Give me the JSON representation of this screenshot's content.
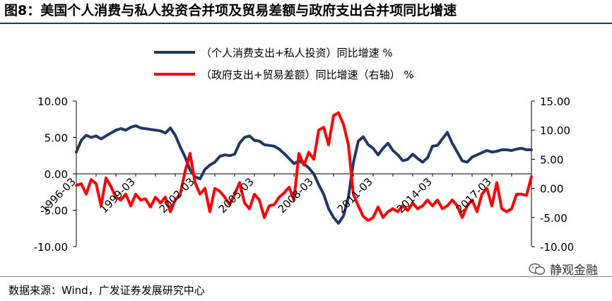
{
  "header": {
    "title": "图8：美国个人消费与私人投资合并项及贸易差额与政府支出合并项同比增速"
  },
  "legend": {
    "series_a": "（个人消费支出+私人投资）同比增速 %",
    "series_b": "（政府支出+贸易差额）同比增速（右轴） %"
  },
  "footer": {
    "source": "数据来源：Wind，广发证券发展研究中心",
    "watermark": "静观金融"
  },
  "colors": {
    "series_a": "#1f3864",
    "series_b": "#ff0000",
    "axis": "#000000"
  },
  "chart_data": {
    "type": "line",
    "x_tick_labels": [
      "1996-03",
      "1999-03",
      "2002-03",
      "2005-03",
      "2008-03",
      "2011-03",
      "2014-03",
      "2017-03"
    ],
    "y_left_ticks": [
      "10.00",
      "5.00",
      "0.00",
      "-5.00",
      "-10.00"
    ],
    "y_left_range": [
      -10,
      10
    ],
    "y_right_ticks": [
      "15.00",
      "10.00",
      "5.00",
      "0.00",
      "-5.00",
      "-10.00"
    ],
    "y_right_range": [
      -10,
      15
    ],
    "grid": false,
    "legend_position": "top",
    "series": [
      {
        "name": "（个人消费支出+私人投资）同比增速 %",
        "axis": "left",
        "x": [
          "1996-03",
          "1996-06",
          "1996-09",
          "1996-12",
          "1997-03",
          "1997-06",
          "1997-09",
          "1997-12",
          "1998-03",
          "1998-06",
          "1998-09",
          "1998-12",
          "1999-03",
          "1999-06",
          "1999-09",
          "1999-12",
          "2000-03",
          "2000-06",
          "2000-09",
          "2000-12",
          "2001-03",
          "2001-06",
          "2001-09",
          "2001-12",
          "2002-03",
          "2002-06",
          "2002-09",
          "2002-12",
          "2003-03",
          "2003-06",
          "2003-09",
          "2003-12",
          "2004-03",
          "2004-06",
          "2004-09",
          "2004-12",
          "2005-03",
          "2005-06",
          "2005-09",
          "2005-12",
          "2006-03",
          "2006-06",
          "2006-09",
          "2006-12",
          "2007-03",
          "2007-06",
          "2007-09",
          "2007-12",
          "2008-03",
          "2008-06",
          "2008-09",
          "2008-12",
          "2009-03",
          "2009-06",
          "2009-09",
          "2009-12",
          "2010-03",
          "2010-06",
          "2010-09",
          "2010-12",
          "2011-03",
          "2011-06",
          "2011-09",
          "2011-12",
          "2012-03",
          "2012-06",
          "2012-09",
          "2012-12",
          "2013-03",
          "2013-06",
          "2013-09",
          "2013-12",
          "2014-03",
          "2014-06",
          "2014-09",
          "2014-12",
          "2015-03",
          "2015-06",
          "2015-09",
          "2015-12",
          "2016-03",
          "2016-06",
          "2016-09",
          "2016-12",
          "2017-03",
          "2017-06",
          "2017-09",
          "2017-12",
          "2018-03",
          "2018-06",
          "2018-09",
          "2018-12",
          "2019-03"
        ],
        "values": [
          3.0,
          4.6,
          5.3,
          5.0,
          5.2,
          4.8,
          5.2,
          5.6,
          6.0,
          6.2,
          6.0,
          6.4,
          6.6,
          6.3,
          6.2,
          6.1,
          6.0,
          5.9,
          5.6,
          6.3,
          5.3,
          3.7,
          2.3,
          0.5,
          -0.4,
          -0.7,
          0.6,
          1.2,
          1.6,
          2.4,
          2.6,
          2.5,
          2.7,
          4.2,
          5.0,
          5.2,
          4.6,
          4.5,
          4.0,
          3.9,
          3.8,
          3.4,
          2.8,
          2.1,
          1.4,
          1.8,
          1.4,
          0.8,
          0.0,
          -1.5,
          -2.8,
          -4.8,
          -6.0,
          -6.8,
          -5.8,
          -3.2,
          1.5,
          4.5,
          5.1,
          4.0,
          3.5,
          2.6,
          3.5,
          4.2,
          3.2,
          2.6,
          1.8,
          2.0,
          2.7,
          2.1,
          1.6,
          2.2,
          3.8,
          3.9,
          4.8,
          5.7,
          4.2,
          3.0,
          1.8,
          1.6,
          2.3,
          2.6,
          2.9,
          3.2,
          3.0,
          3.1,
          3.3,
          3.3,
          3.2,
          3.4,
          3.5,
          3.3,
          3.3
        ]
      },
      {
        "name": "（政府支出+贸易差额）同比增速（右轴） %",
        "axis": "right",
        "x": [
          "1996-03",
          "1996-06",
          "1996-09",
          "1996-12",
          "1997-03",
          "1997-06",
          "1997-09",
          "1997-12",
          "1998-03",
          "1998-06",
          "1998-09",
          "1998-12",
          "1999-03",
          "1999-06",
          "1999-09",
          "1999-12",
          "2000-03",
          "2000-06",
          "2000-09",
          "2000-12",
          "2001-03",
          "2001-06",
          "2001-09",
          "2001-12",
          "2002-03",
          "2002-06",
          "2002-09",
          "2002-12",
          "2003-03",
          "2003-06",
          "2003-09",
          "2003-12",
          "2004-03",
          "2004-06",
          "2004-09",
          "2004-12",
          "2005-03",
          "2005-06",
          "2005-09",
          "2005-12",
          "2006-03",
          "2006-06",
          "2006-09",
          "2006-12",
          "2007-03",
          "2007-06",
          "2007-09",
          "2007-12",
          "2008-03",
          "2008-06",
          "2008-09",
          "2008-12",
          "2009-03",
          "2009-06",
          "2009-09",
          "2009-12",
          "2010-03",
          "2010-06",
          "2010-09",
          "2010-12",
          "2011-03",
          "2011-06",
          "2011-09",
          "2011-12",
          "2012-03",
          "2012-06",
          "2012-09",
          "2012-12",
          "2013-03",
          "2013-06",
          "2013-09",
          "2013-12",
          "2014-03",
          "2014-06",
          "2014-09",
          "2014-12",
          "2015-03",
          "2015-06",
          "2015-09",
          "2015-12",
          "2016-03",
          "2016-06",
          "2016-09",
          "2016-12",
          "2017-03",
          "2017-06",
          "2017-09",
          "2017-12",
          "2018-03",
          "2018-06",
          "2018-09",
          "2018-12",
          "2019-03"
        ],
        "values": [
          0.5,
          0.8,
          -1.0,
          1.5,
          0.8,
          -3.0,
          1.8,
          0.3,
          -1.5,
          -2.0,
          -1.0,
          -3.0,
          -1.0,
          -2.0,
          -1.8,
          -3.2,
          -1.5,
          -2.5,
          -1.5,
          -4.0,
          -2.0,
          -1.0,
          3.0,
          6.0,
          1.0,
          -1.0,
          0.0,
          -4.0,
          0.0,
          -0.5,
          -1.5,
          -2.8,
          -1.0,
          1.0,
          -2.5,
          -3.5,
          -1.0,
          -2.0,
          -5.0,
          -3.0,
          -2.8,
          -1.5,
          -0.8,
          0.2,
          -2.0,
          6.0,
          4.0,
          6.2,
          5.0,
          10.0,
          10.5,
          7.5,
          12.5,
          13.0,
          11.0,
          7.5,
          -1.0,
          -3.0,
          -4.8,
          -5.5,
          -5.0,
          -3.2,
          -5.0,
          -4.0,
          -3.5,
          -4.0,
          -3.0,
          -3.8,
          -2.5,
          -3.5,
          -3.0,
          -2.0,
          -3.0,
          -2.0,
          -3.5,
          -3.0,
          -2.0,
          -3.0,
          -5.0,
          -3.0,
          -2.0,
          -4.0,
          -1.0,
          0.0,
          -3.0,
          1.0,
          -3.5,
          -4.0,
          -3.5,
          -1.0,
          -1.0,
          -1.2,
          2.0
        ]
      }
    ]
  }
}
